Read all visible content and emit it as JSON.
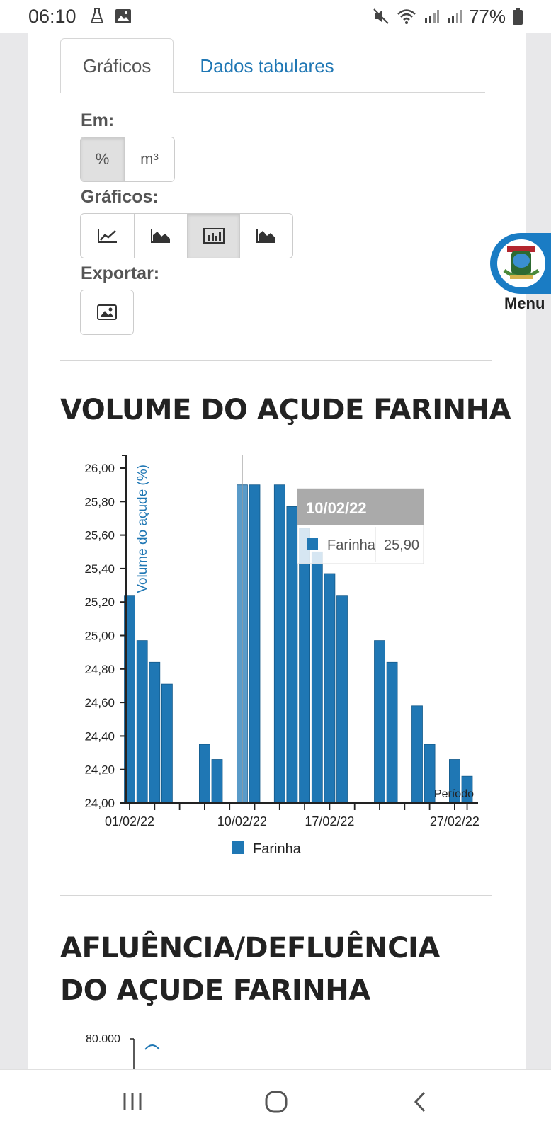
{
  "status_bar": {
    "time": "06:10",
    "battery": "77%"
  },
  "tabs": [
    {
      "label": "Gráficos",
      "active": true
    },
    {
      "label": "Dados tabulares",
      "active": false
    }
  ],
  "units": {
    "label": "Em:",
    "options": [
      "%",
      "m³"
    ],
    "selected": "%"
  },
  "chart_types": {
    "label": "Gráficos:",
    "options": [
      "line-chart-icon",
      "area-chart-icon",
      "bar-chart-icon",
      "stacked-area-icon"
    ],
    "selected": "bar-chart-icon"
  },
  "export": {
    "label": "Exportar:",
    "icon": "image-icon"
  },
  "menu": {
    "label": "Menu"
  },
  "chart_title": "VOLUME DO AÇUDE FARINHA",
  "chart_data": {
    "type": "bar",
    "title": "VOLUME DO AÇUDE FARINHA",
    "ylabel": "Volume do açude (%)",
    "xlabel": "Período",
    "ylim": [
      24.0,
      26.0
    ],
    "yticks": [
      "24,00",
      "24,20",
      "24,40",
      "24,60",
      "24,80",
      "25,00",
      "25,20",
      "25,40",
      "25,60",
      "25,80",
      "26,00"
    ],
    "xtick_labels": [
      "01/02/22",
      "10/02/22",
      "17/02/22",
      "27/02/22"
    ],
    "x": [
      "01/02/22",
      "02/02/22",
      "03/02/22",
      "04/02/22",
      "07/02/22",
      "08/02/22",
      "10/02/22",
      "11/02/22",
      "13/02/22",
      "14/02/22",
      "15/02/22",
      "16/02/22",
      "17/02/22",
      "18/02/22",
      "21/02/22",
      "22/02/22",
      "24/02/22",
      "25/02/22",
      "27/02/22",
      "28/02/22"
    ],
    "series": [
      {
        "name": "Farinha",
        "values": [
          25.24,
          24.97,
          24.84,
          24.71,
          24.35,
          24.26,
          25.9,
          25.9,
          25.9,
          25.77,
          25.64,
          25.5,
          25.37,
          25.24,
          24.97,
          24.84,
          24.58,
          24.35,
          24.26,
          24.16
        ]
      }
    ],
    "legend": "bottom",
    "color": "#1f77b4",
    "highlight_color": "#5a9bc9",
    "tooltip": {
      "date": "10/02/22",
      "series": "Farinha",
      "value": "25,90"
    }
  },
  "next_title": "AFLUÊNCIA/DEFLUÊNCIA DO AÇUDE FARINHA",
  "next_chart": {
    "first_tick": "80.000"
  }
}
